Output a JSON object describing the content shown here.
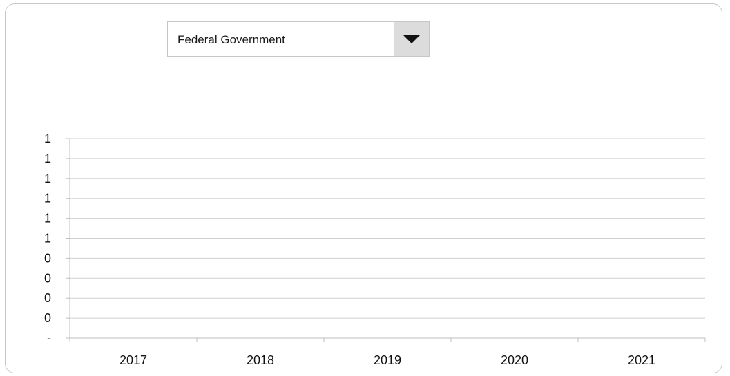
{
  "dropdown": {
    "selected": "Federal Government",
    "icon": "chevron-down-icon"
  },
  "chart_data": {
    "type": "line",
    "categories": [
      "2017",
      "2018",
      "2019",
      "2020",
      "2021"
    ],
    "y_tick_labels": [
      "-",
      "0",
      "0",
      "0",
      "0",
      "1",
      "1",
      "1",
      "1",
      "1",
      "1"
    ],
    "series": [],
    "grid": true,
    "colors": {
      "gridline": "#d0d0d0",
      "axis": "#bfbfbf",
      "text": "#111111"
    }
  }
}
